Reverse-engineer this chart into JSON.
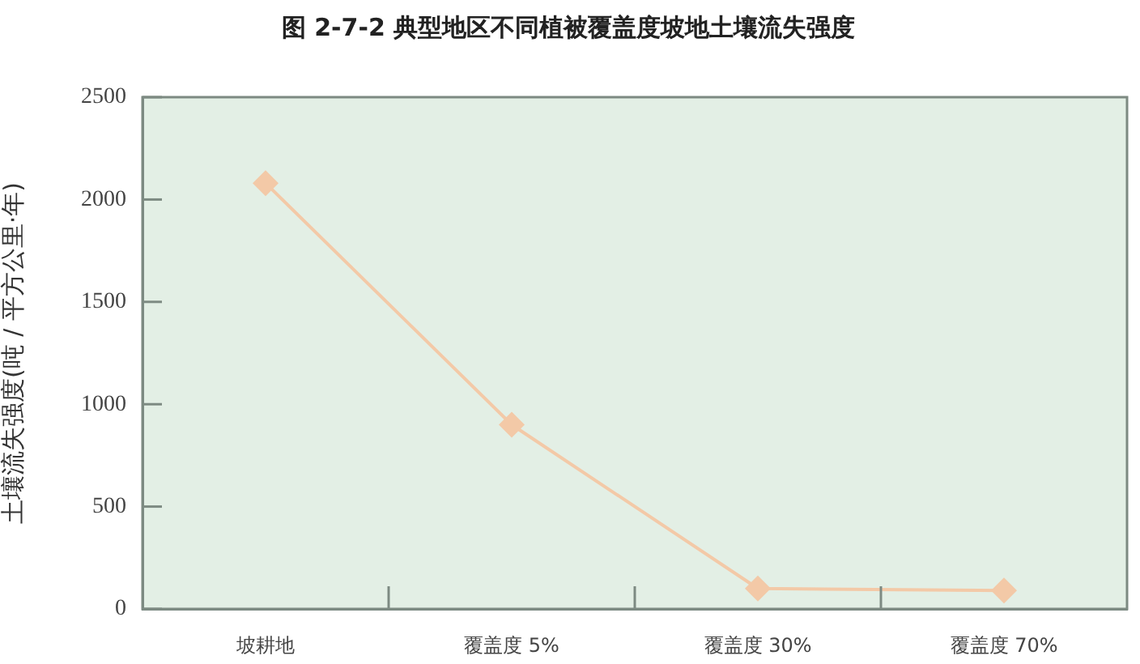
{
  "chart_data": {
    "type": "line",
    "title": "图 2-7-2 典型地区不同植被覆盖度坡地土壤流失强度",
    "ylabel": "土壤流失强度(吨 / 平方公里·年)",
    "categories": [
      "坡耕地",
      "覆盖度 5%",
      "覆盖度 30%",
      "覆盖度 70%"
    ],
    "series": [
      {
        "color": "#f3c9a7",
        "values": [
          2080,
          900,
          100,
          90
        ]
      }
    ],
    "ylim": [
      0,
      2500
    ],
    "yticks": [
      0,
      500,
      1000,
      1500,
      2000,
      2500
    ],
    "grid": false,
    "legend": false,
    "marker": "diamond",
    "line_style": "solid"
  }
}
